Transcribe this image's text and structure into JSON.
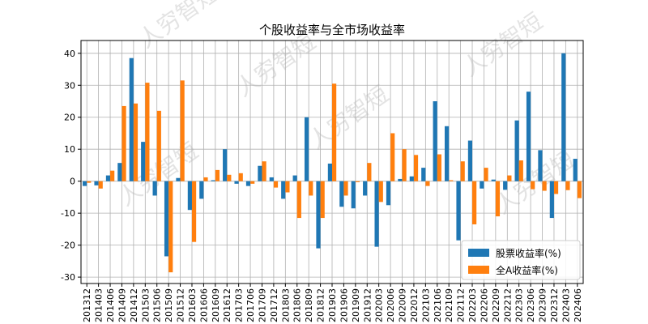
{
  "chart_data": {
    "type": "bar",
    "title": "个股收益率与全市场收益率",
    "xlabel": "",
    "ylabel": "",
    "ylim": [
      -32,
      44
    ],
    "yticks": [
      -30,
      -20,
      -10,
      0,
      10,
      20,
      30,
      40
    ],
    "categories": [
      "201312",
      "201403",
      "201406",
      "201409",
      "201412",
      "201503",
      "201506",
      "201509",
      "201512",
      "201603",
      "201606",
      "201609",
      "201612",
      "201703",
      "201706",
      "201709",
      "201712",
      "201803",
      "201806",
      "201809",
      "201812",
      "201903",
      "201906",
      "201909",
      "201912",
      "202003",
      "202006",
      "202009",
      "202012",
      "202103",
      "202106",
      "202109",
      "202112",
      "202203",
      "202206",
      "202209",
      "202212",
      "202303",
      "202306",
      "202309",
      "202312",
      "202403",
      "202406"
    ],
    "series": [
      {
        "name": "股票收益率(%)",
        "color": "#1f77b4",
        "values": [
          -1.5,
          -1.3,
          1.8,
          5.7,
          38.5,
          12.3,
          -4.5,
          -23.5,
          1.0,
          -9.0,
          -5.5,
          0.3,
          10.0,
          -0.8,
          -1.5,
          4.8,
          1.2,
          -5.5,
          1.8,
          20.0,
          -21.0,
          5.5,
          -8.0,
          -8.5,
          -4.5,
          -20.5,
          -7.5,
          0.7,
          1.5,
          4.2,
          25.0,
          17.2,
          -18.5,
          12.7,
          -2.3,
          0.5,
          -2.7,
          19.0,
          28.0,
          9.7,
          -11.5,
          40.0,
          7.0
        ]
      },
      {
        "name": "全A收益率(%)",
        "color": "#ff7f0e",
        "values": [
          -0.5,
          -2.3,
          3.3,
          23.5,
          24.3,
          30.8,
          22.0,
          -28.5,
          31.5,
          -19.0,
          1.2,
          3.5,
          2.0,
          2.5,
          -0.8,
          6.2,
          -2.0,
          -3.5,
          -11.5,
          -4.5,
          -11.5,
          30.5,
          -4.5,
          -0.3,
          5.7,
          -6.5,
          15.0,
          10.0,
          8.2,
          -1.5,
          8.4,
          0.3,
          6.2,
          -13.5,
          4.2,
          -11.0,
          1.8,
          6.5,
          -2.5,
          -3.0,
          -4.0,
          -2.8,
          -5.3
        ]
      }
    ],
    "legend_position": "lower-right",
    "grid": true
  },
  "watermarks": [
    "人穷智短",
    "人穷智短",
    "人穷智短",
    "人穷智短",
    "人穷智短",
    "人穷智短"
  ]
}
